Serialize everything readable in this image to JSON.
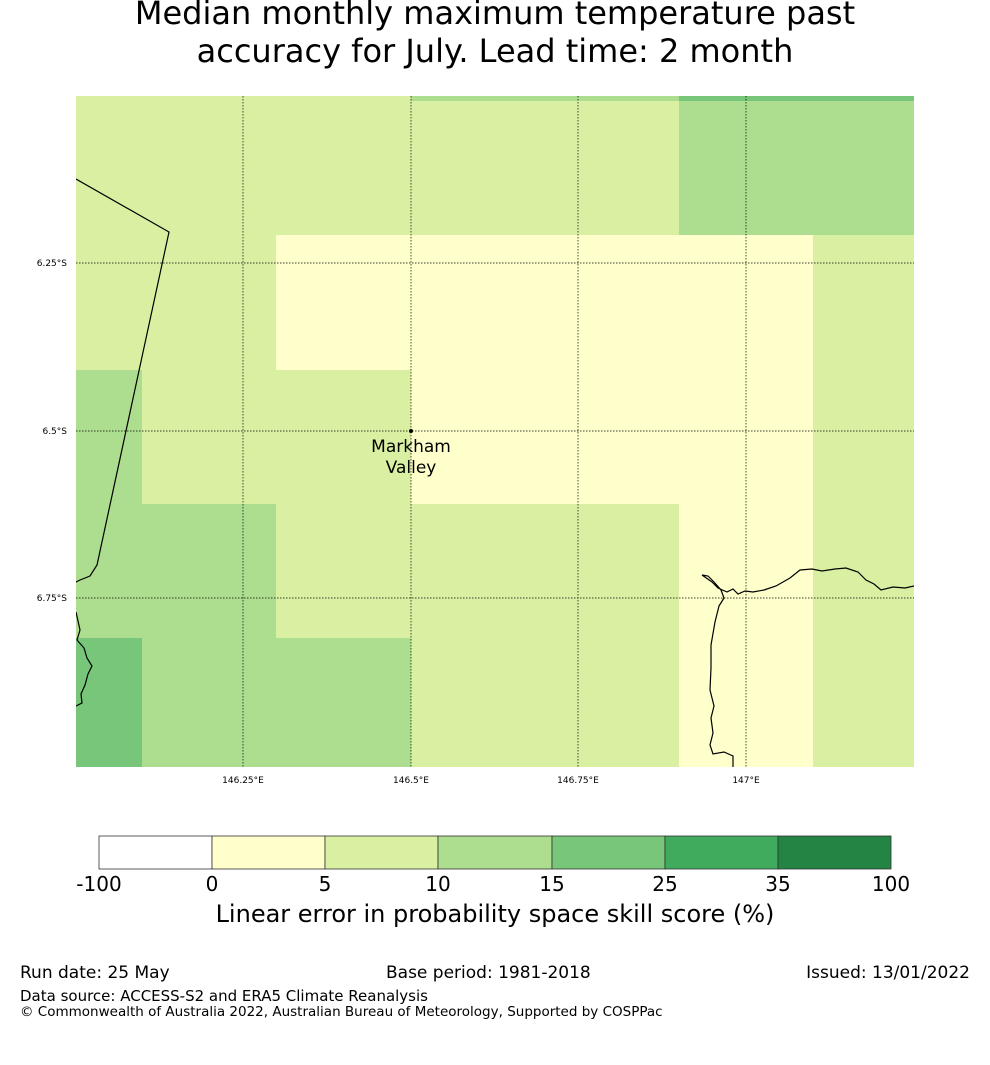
{
  "title_line1": "Median monthly maximum temperature past",
  "title_line2": "accuracy for July. Lead time: 2 month",
  "map": {
    "lat_labels": [
      "6.25°S",
      "6.5°S",
      "6.75°S"
    ],
    "lon_labels": [
      "146.25°E",
      "146.5°E",
      "146.75°E",
      "147°E"
    ],
    "location": {
      "name_line1": "Markham",
      "name_line2": "Valley"
    }
  },
  "colorbar": {
    "ticks": [
      "-100",
      "0",
      "5",
      "10",
      "15",
      "25",
      "35",
      "100"
    ],
    "colors": [
      "#ffffff",
      "#ffffcc",
      "#d9f0a3",
      "#addd8e",
      "#78c679",
      "#41ab5d",
      "#238443"
    ],
    "label": "Linear error in probability space skill score (%)"
  },
  "footer": {
    "run_date": "Run date: 25 May",
    "base_period": "Base period: 1981-2018",
    "issued": "Issued: 13/01/2022",
    "data_source": "Data source: ACCESS-S2 and ERA5 Climate Reanalysis",
    "copyright": "© Commonwealth of Australia 2022, Australian Bureau of Meteorology, Supported by COSPPac"
  }
}
